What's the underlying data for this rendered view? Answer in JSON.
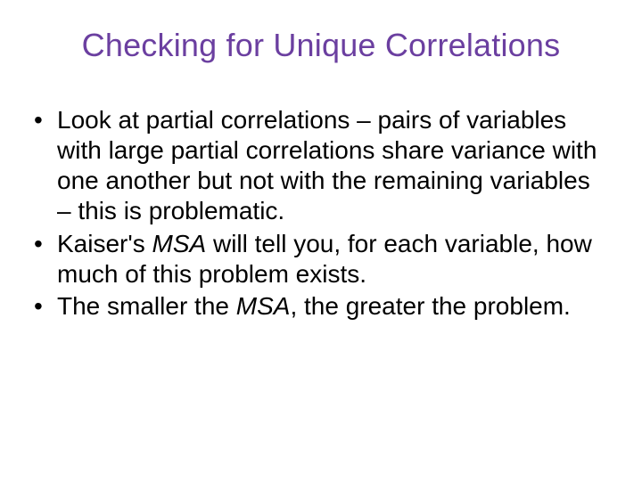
{
  "slide": {
    "title": "Checking for Unique Correlations",
    "title_color": "#6b3fa0",
    "title_fontsize": 36,
    "body_fontsize": 28,
    "body_color": "#000000",
    "background_color": "#ffffff",
    "bullets": [
      {
        "segments": [
          {
            "text": "Look at partial correlations –  pairs of variables with large partial correlations share variance with one another but not with the remaining variables – this is problematic.",
            "italic": false
          }
        ]
      },
      {
        "segments": [
          {
            "text": "Kaiser's ",
            "italic": false
          },
          {
            "text": "MSA",
            "italic": true
          },
          {
            "text": " will tell you, for each variable, how much of this problem exists.",
            "italic": false
          }
        ]
      },
      {
        "segments": [
          {
            "text": "The smaller the ",
            "italic": false
          },
          {
            "text": "MSA",
            "italic": true
          },
          {
            "text": ", the greater the problem.",
            "italic": false
          }
        ]
      }
    ]
  }
}
